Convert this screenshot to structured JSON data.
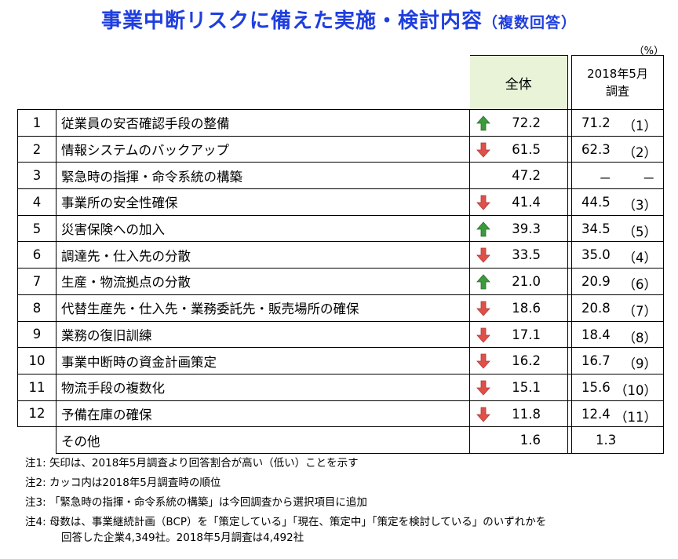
{
  "title": "事業中断リスクに備えた実施・検討内容",
  "subtitle": "（複数回答）",
  "unit": "（%）",
  "chart_data": {
    "type": "table",
    "columns": [
      "全体",
      "2018年5月調査"
    ],
    "rows": [
      {
        "no": "1",
        "item": "従業員の安否確認手段の整備",
        "arrow": "up",
        "all": "72.2",
        "prev": "71.2",
        "prev_rank": "（1）"
      },
      {
        "no": "2",
        "item": "情報システムのバックアップ",
        "arrow": "down",
        "all": "61.5",
        "prev": "62.3",
        "prev_rank": "（2）"
      },
      {
        "no": "3",
        "item": "緊急時の指揮・命令系統の構築",
        "arrow": "none",
        "all": "47.2",
        "prev": "－",
        "prev_rank": "－"
      },
      {
        "no": "4",
        "item": "事業所の安全性確保",
        "arrow": "down",
        "all": "41.4",
        "prev": "44.5",
        "prev_rank": "（3）"
      },
      {
        "no": "5",
        "item": "災害保険への加入",
        "arrow": "up",
        "all": "39.3",
        "prev": "34.5",
        "prev_rank": "（5）"
      },
      {
        "no": "6",
        "item": "調達先・仕入先の分散",
        "arrow": "down",
        "all": "33.5",
        "prev": "35.0",
        "prev_rank": "（4）"
      },
      {
        "no": "7",
        "item": "生産・物流拠点の分散",
        "arrow": "up",
        "all": "21.0",
        "prev": "20.9",
        "prev_rank": "（6）"
      },
      {
        "no": "8",
        "item": "代替生産先・仕入先・業務委託先・販売場所の確保",
        "arrow": "down",
        "all": "18.6",
        "prev": "20.8",
        "prev_rank": "（7）"
      },
      {
        "no": "9",
        "item": "業務の復旧訓練",
        "arrow": "down",
        "all": "17.1",
        "prev": "18.4",
        "prev_rank": "（8）"
      },
      {
        "no": "10",
        "item": "事業中断時の資金計画策定",
        "arrow": "down",
        "all": "16.2",
        "prev": "16.7",
        "prev_rank": "（9）"
      },
      {
        "no": "11",
        "item": "物流手段の複数化",
        "arrow": "down",
        "all": "15.1",
        "prev": "15.6",
        "prev_rank": "（10）"
      },
      {
        "no": "12",
        "item": "予備在庫の確保",
        "arrow": "down",
        "all": "11.8",
        "prev": "12.4",
        "prev_rank": "（11）"
      }
    ],
    "other": {
      "item": "その他",
      "all": "1.6",
      "prev": "1.3"
    }
  },
  "header": {
    "all_label": "全体",
    "prev_label_line1": "2018年5月",
    "prev_label_line2": "調査"
  },
  "colors": {
    "title": "#1f3ee0",
    "up_arrow": "#3c9a3c",
    "down_arrow": "#e0504a",
    "header_bg": "#e8f3d8"
  },
  "notes": [
    {
      "label": "注1:",
      "text": "矢印は、2018年5月調査より回答割合が高い（低い）ことを示す"
    },
    {
      "label": "注2:",
      "text": "カッコ内は2018年5月調査時の順位"
    },
    {
      "label": "注3:",
      "text": "「緊急時の指揮・命令系統の構築」は今回調査から選択項目に追加"
    },
    {
      "label": "注4:",
      "text": "母数は、事業継続計画（BCP）を「策定している」「現在、策定中」「策定を検討している」のいずれかを"
    },
    {
      "label": "",
      "text": "回答した企業4,349社。2018年5月調査は4,492社"
    }
  ]
}
